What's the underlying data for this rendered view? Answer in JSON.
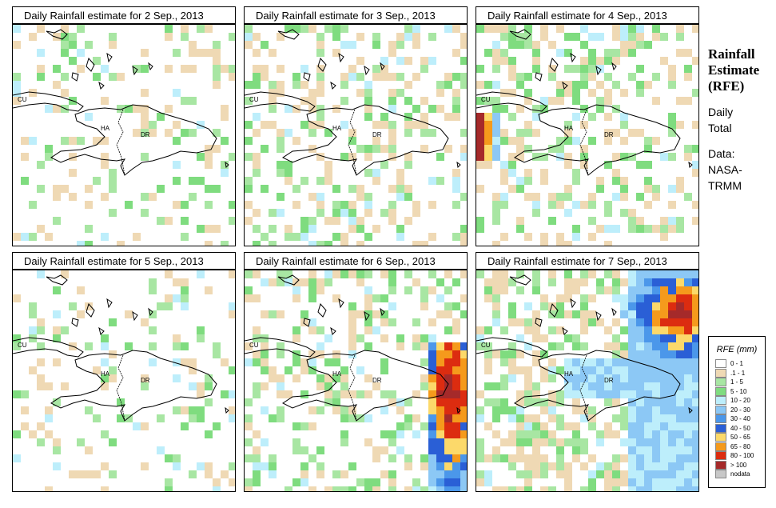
{
  "panels": [
    {
      "title": "Daily Rainfall estimate for  2 Sep., 2013",
      "seed": 11,
      "wet": 0.22,
      "storm": null
    },
    {
      "title": "Daily Rainfall estimate for  3 Sep., 2013",
      "seed": 23,
      "wet": 0.3,
      "storm": null
    },
    {
      "title": "Daily Rainfall estimate for  4 Sep., 2013",
      "seed": 37,
      "wet": 0.35,
      "storm": "west"
    },
    {
      "title": "Daily Rainfall estimate for  5 Sep., 2013",
      "seed": 41,
      "wet": 0.18,
      "storm": null
    },
    {
      "title": "Daily Rainfall estimate for  6 Sep., 2013",
      "seed": 53,
      "wet": 0.3,
      "storm": "east"
    },
    {
      "title": "Daily Rainfall estimate for  7 Sep., 2013",
      "seed": 67,
      "wet": 0.45,
      "storm": "northeast"
    }
  ],
  "map_labels": {
    "cu": "CU",
    "ha": "HA",
    "dr": "DR"
  },
  "side": {
    "title_1": "Rainfall",
    "title_2": "Estimate",
    "title_3": "(RFE)",
    "daily_1": "Daily",
    "daily_2": "Total",
    "data_1": "Data:",
    "data_2": "NASA-",
    "data_3": "TRMM"
  },
  "legend": {
    "title": "RFE (mm)",
    "items": [
      {
        "label": "0 - 1",
        "color": "#ffffff"
      },
      {
        "label": ".1 - 1",
        "color": "#efd9b4"
      },
      {
        "label": "1 - 5",
        "color": "#a8e6a3"
      },
      {
        "label": "5 - 10",
        "color": "#7fdc7f"
      },
      {
        "label": "10 - 20",
        "color": "#bdeefb"
      },
      {
        "label": "20 - 30",
        "color": "#8cc8f5"
      },
      {
        "label": "30 - 40",
        "color": "#4b97ea"
      },
      {
        "label": "40 - 50",
        "color": "#2a5fd6"
      },
      {
        "label": "50 - 65",
        "color": "#fcd96a"
      },
      {
        "label": "65 - 80",
        "color": "#f59a1c"
      },
      {
        "label": "80 - 100",
        "color": "#dc2c10"
      },
      {
        "label": "> 100",
        "color": "#a52a2a"
      },
      {
        "label": "nodata",
        "color": "#c8c8c8"
      }
    ]
  }
}
